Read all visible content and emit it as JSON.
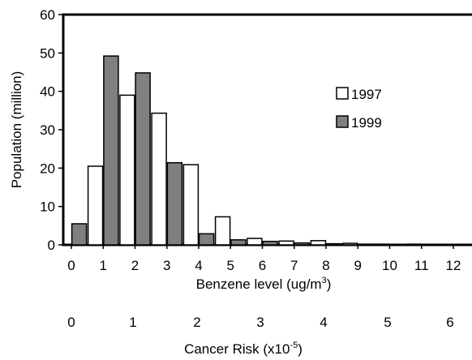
{
  "chart_data": {
    "type": "bar",
    "categories": [
      "1",
      "2",
      "3",
      "4",
      "5",
      "6",
      "7",
      "8",
      "9",
      "10",
      "11",
      "12"
    ],
    "series": [
      {
        "name": "1997",
        "values": [
          20.5,
          39,
          34.3,
          20.9,
          7.3,
          1.7,
          1.0,
          1.1,
          0.4,
          0.2,
          0.2,
          0.1
        ],
        "color": "#ffffff"
      },
      {
        "name": "1999",
        "values": [
          5.5,
          49.2,
          44.8,
          21.4,
          2.9,
          1.3,
          0.9,
          0.5,
          0.3,
          0.2,
          0.1,
          0.1
        ],
        "color": "#808080"
      }
    ],
    "ylabel": "Population (million)",
    "ylim": [
      0,
      60
    ],
    "yticks": [
      "0",
      "10",
      "20",
      "30",
      "40",
      "50",
      "60"
    ],
    "xlabel": "Benzene level (ug/m",
    "xlabel_sup": "3",
    "xlabel_close": ")",
    "xticks": [
      "0",
      "1",
      "2",
      "3",
      "4",
      "5",
      "6",
      "7",
      "8",
      "9",
      "10",
      "11",
      "12"
    ],
    "secondary_xlabel": "Cancer Risk (x10",
    "secondary_xlabel_sup": "-5",
    "secondary_xlabel_close": ")",
    "secondary_xticks": [
      "0",
      "1",
      "2",
      "3",
      "4",
      "5",
      "6"
    ],
    "legend_position": "right",
    "grid": false
  }
}
